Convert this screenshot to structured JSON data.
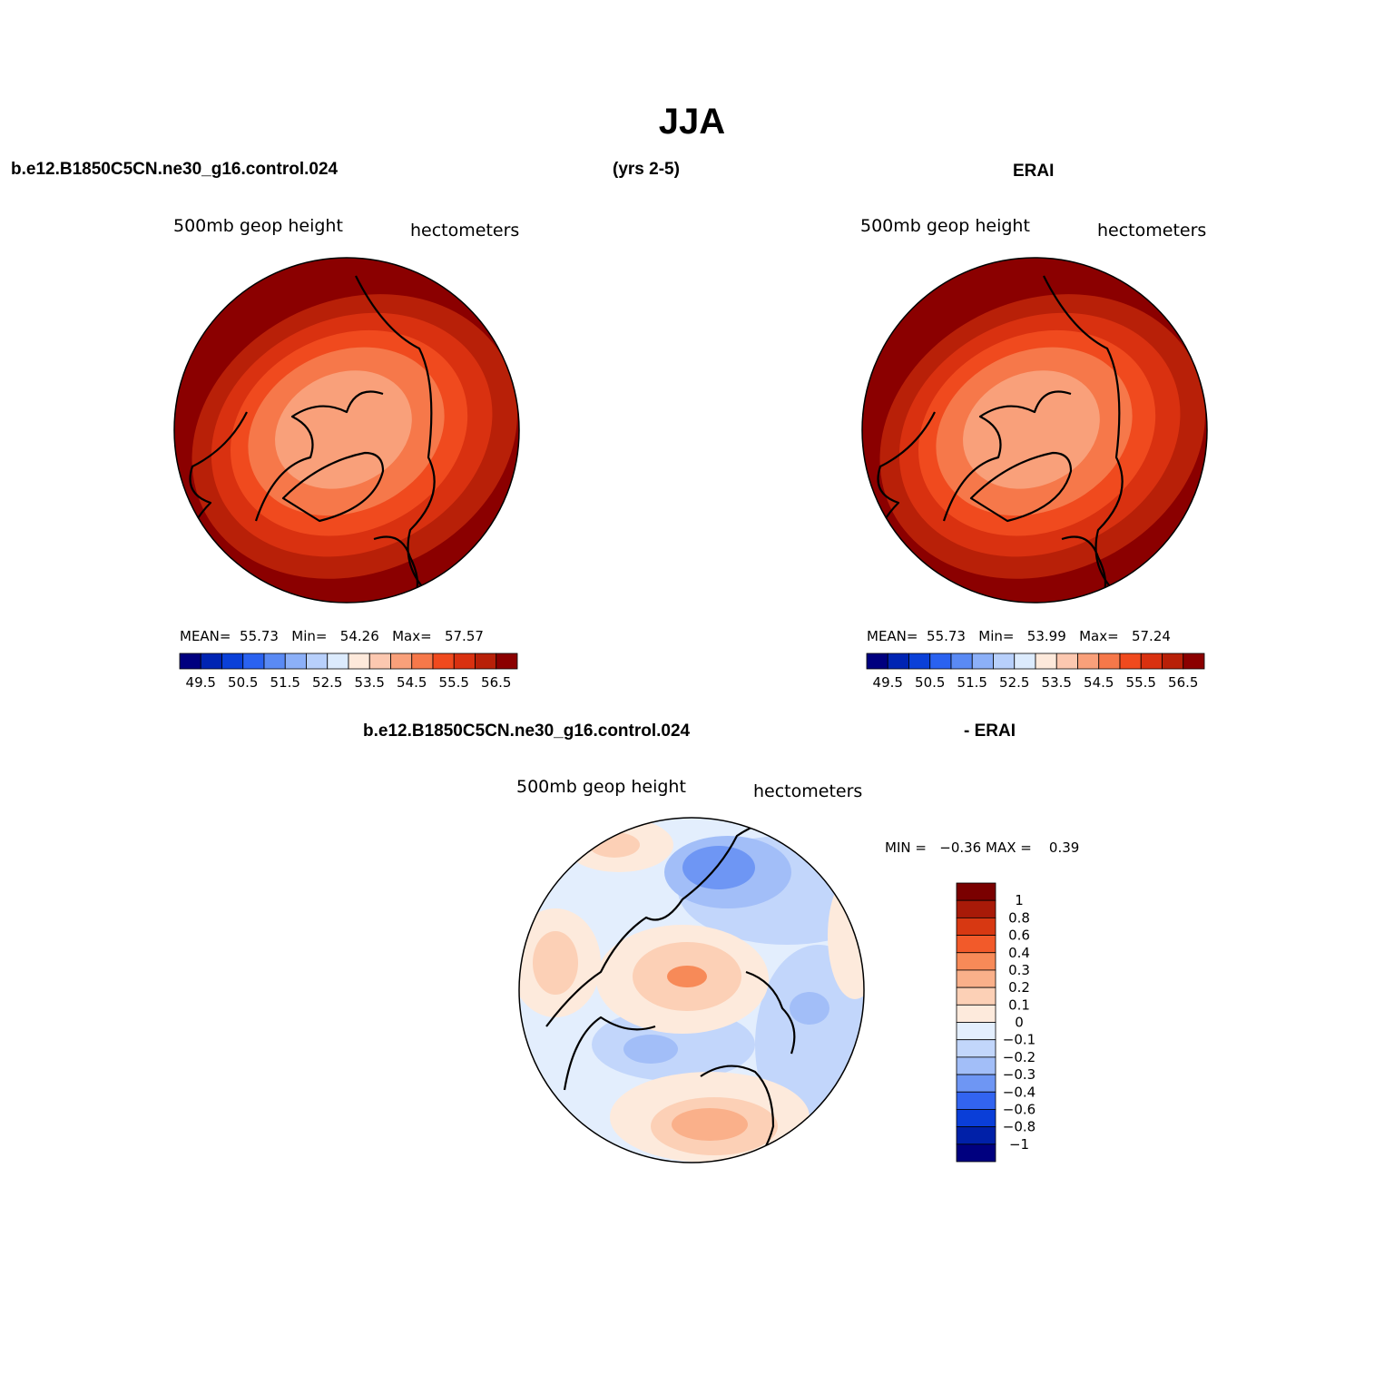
{
  "figure": {
    "title": "JJA",
    "top_left_header": "b.e12.B1850C5CN.ne30_g16.control.024",
    "top_center_header": "(yrs 2-5)",
    "top_right_header": "ERAI",
    "bottom_header_left": "b.e12.B1850C5CN.ne30_g16.control.024",
    "bottom_header_right": "- ERAI"
  },
  "colors": {
    "warm_scale": [
      "#00007f",
      "#0024b3",
      "#0a40d8",
      "#2a62f0",
      "#5a8af4",
      "#8cb0f8",
      "#b8d0fb",
      "#dcebfd",
      "#fde9db",
      "#fcc8b0",
      "#f9a07a",
      "#f6784a",
      "#f04a1e",
      "#d93110",
      "#b82008",
      "#8b0000"
    ],
    "diff_scale": [
      "#00007f",
      "#0020a8",
      "#0a3ed8",
      "#3264f0",
      "#6e96f4",
      "#a2bef8",
      "#c2d6fb",
      "#e3eefd",
      "#fdeadc",
      "#fcd0b6",
      "#fab08a",
      "#f78a58",
      "#f25a2a",
      "#d73812",
      "#a81a08",
      "#7a0000"
    ]
  },
  "chart_data": [
    {
      "type": "heatmap",
      "name": "model",
      "label_left": "500mb geop height",
      "label_right": "hectometers",
      "stats": {
        "mean_label": "MEAN=",
        "mean": "55.73",
        "min_label": "Min=",
        "min": "54.26",
        "max_label": "Max=",
        "max": "57.57"
      },
      "colorbar_ticks": [
        "49.5",
        "50.5",
        "51.5",
        "52.5",
        "53.5",
        "54.5",
        "55.5",
        "56.5"
      ],
      "levels": [
        49.5,
        50,
        50.5,
        51,
        51.5,
        52,
        52.5,
        53,
        53.5,
        54,
        54.5,
        55,
        55.5,
        56,
        56.5
      ]
    },
    {
      "type": "heatmap",
      "name": "ERAI",
      "label_left": "500mb geop height",
      "label_right": "hectometers",
      "stats": {
        "mean_label": "MEAN=",
        "mean": "55.73",
        "min_label": "Min=",
        "min": "53.99",
        "max_label": "Max=",
        "max": "57.24"
      },
      "colorbar_ticks": [
        "49.5",
        "50.5",
        "51.5",
        "52.5",
        "53.5",
        "54.5",
        "55.5",
        "56.5"
      ],
      "levels": [
        49.5,
        50,
        50.5,
        51,
        51.5,
        52,
        52.5,
        53,
        53.5,
        54,
        54.5,
        55,
        55.5,
        56,
        56.5
      ]
    },
    {
      "type": "heatmap",
      "name": "difference",
      "label_left": "500mb geop height",
      "label_right": "hectometers",
      "stats": {
        "min_label": "MIN =",
        "min": "−0.36",
        "max_label": "MAX =",
        "max": "0.39"
      },
      "colorbar_ticks": [
        "1",
        "0.8",
        "0.6",
        "0.4",
        "0.3",
        "0.2",
        "0.1",
        "0",
        "−0.1",
        "−0.2",
        "−0.3",
        "−0.4",
        "−0.6",
        "−0.8",
        "−1"
      ],
      "levels": [
        1,
        0.8,
        0.6,
        0.4,
        0.3,
        0.2,
        0.1,
        0,
        -0.1,
        -0.2,
        -0.3,
        -0.4,
        -0.6,
        -0.8,
        -1
      ]
    }
  ]
}
